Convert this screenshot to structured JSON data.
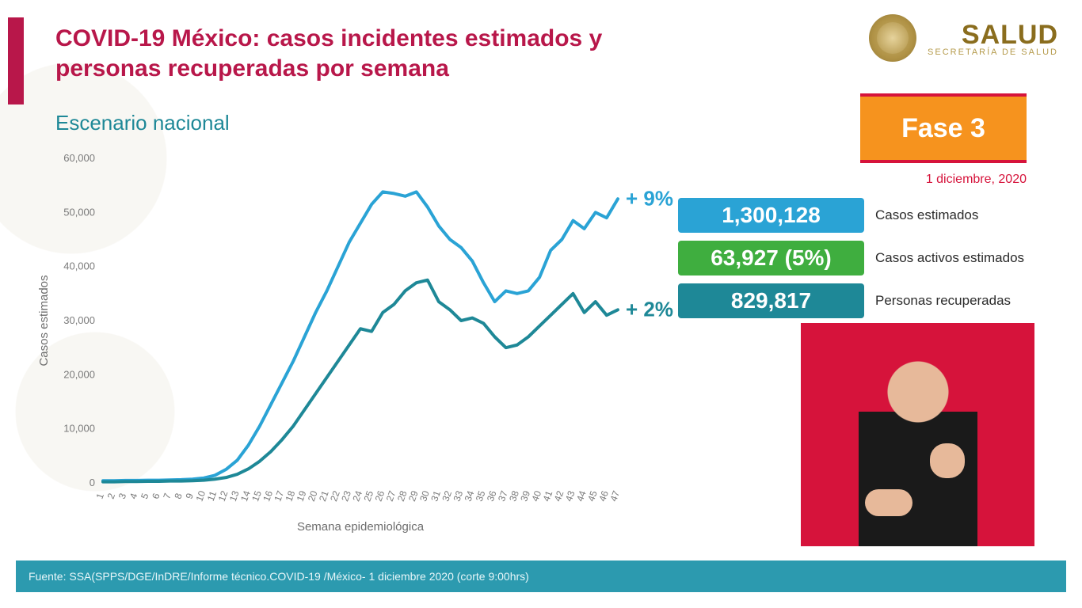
{
  "header": {
    "title": "COVID-19 México: casos incidentes estimados y personas recuperadas por semana",
    "subtitle": "Escenario nacional",
    "logo_text": "SALUD",
    "logo_sub": "SECRETARÍA DE SALUD",
    "phase": "Fase 3",
    "date": "1 diciembre, 2020"
  },
  "stats": {
    "estimated_cases": {
      "value": "1,300,128",
      "label": "Casos estimados",
      "color": "#2aa3d5"
    },
    "active_cases": {
      "value": "63,927 (5%)",
      "label": "Casos activos estimados",
      "color": "#3fae3f"
    },
    "recovered": {
      "value": "829,817",
      "label": "Personas recuperadas",
      "color": "#1e8897"
    }
  },
  "chart": {
    "type": "line",
    "x_label": "Semana epidemiológica",
    "y_label": "Casos estimados",
    "x_ticks": [
      1,
      2,
      3,
      4,
      5,
      6,
      7,
      8,
      9,
      10,
      11,
      12,
      13,
      14,
      15,
      16,
      17,
      18,
      19,
      20,
      21,
      22,
      23,
      24,
      25,
      26,
      27,
      28,
      29,
      30,
      31,
      32,
      33,
      34,
      35,
      36,
      37,
      38,
      39,
      40,
      41,
      42,
      43,
      44,
      45,
      46,
      47
    ],
    "y_ticks": [
      0,
      10000,
      20000,
      30000,
      40000,
      50000,
      60000
    ],
    "y_tick_labels": [
      "0",
      "10,000",
      "20,000",
      "30,000",
      "40,000",
      "50,000",
      "60,000"
    ],
    "ylim": [
      0,
      60000
    ],
    "xlim": [
      1,
      47
    ],
    "background_color": "#ffffff",
    "series": [
      {
        "name": "casos_estimados",
        "color": "#2aa3d5",
        "width": 4,
        "delta_label": "+ 9%",
        "delta_color": "#2aa3d5",
        "values": [
          400,
          400,
          450,
          450,
          500,
          500,
          550,
          600,
          700,
          900,
          1400,
          2500,
          4200,
          7000,
          10500,
          14500,
          18500,
          22500,
          27000,
          31500,
          35500,
          40000,
          44500,
          48000,
          51500,
          53800,
          53500,
          53000,
          53800,
          51000,
          47500,
          45000,
          43500,
          41000,
          37000,
          33500,
          35500,
          35000,
          35500,
          38000,
          43000,
          45000,
          48500,
          47000,
          50000,
          49000,
          52500
        ]
      },
      {
        "name": "recuperadas",
        "color": "#1e8897",
        "width": 4,
        "delta_label": "+ 2%",
        "delta_color": "#1e8897",
        "values": [
          200,
          200,
          250,
          250,
          300,
          300,
          350,
          350,
          400,
          500,
          700,
          1000,
          1600,
          2600,
          4000,
          5800,
          8000,
          10500,
          13500,
          16500,
          19500,
          22500,
          25500,
          28500,
          28000,
          31500,
          33000,
          35500,
          37000,
          37500,
          33500,
          32000,
          30000,
          30500,
          29500,
          27000,
          25000,
          25500,
          27000,
          29000,
          31000,
          33000,
          35000,
          31500,
          33500,
          31000,
          32000
        ]
      }
    ]
  },
  "source": "Fuente: SSA(SPPS/DGE/InDRE/Informe técnico.COVID-19 /México- 1 diciembre 2020 (corte 9:00hrs)",
  "colors": {
    "brand_red": "#b8174a",
    "alert_red": "#d6133b",
    "teal": "#1e8897",
    "orange": "#f6931e"
  }
}
